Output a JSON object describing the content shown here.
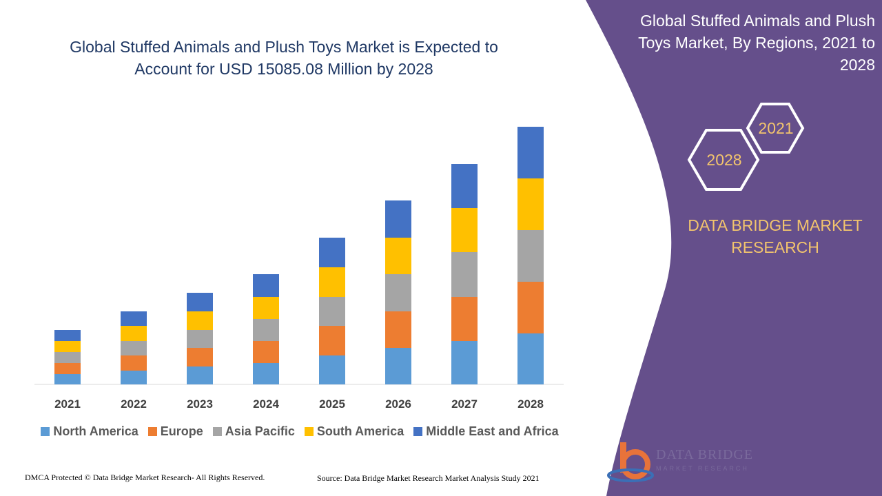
{
  "chart_data": {
    "type": "bar",
    "stacked": true,
    "title": "Global Stuffed Animals and Plush Toys Market is Expected to Account for USD 15085.08 Million by 2028",
    "categories": [
      "2021",
      "2022",
      "2023",
      "2024",
      "2025",
      "2026",
      "2027",
      "2028"
    ],
    "series": [
      {
        "name": "North America",
        "color": "#5b9bd5",
        "values": [
          15,
          20,
          26,
          31,
          42,
          53,
          63,
          74
        ]
      },
      {
        "name": "Europe",
        "color": "#ed7d31",
        "values": [
          16,
          22,
          27,
          32,
          43,
          53,
          64,
          75
        ]
      },
      {
        "name": "Asia Pacific",
        "color": "#a5a5a5",
        "values": [
          16,
          21,
          26,
          32,
          42,
          54,
          65,
          75
        ]
      },
      {
        "name": "South America",
        "color": "#ffc000",
        "values": [
          16,
          22,
          27,
          32,
          43,
          53,
          64,
          75
        ]
      },
      {
        "name": "Middle East and Africa",
        "color": "#4472c4",
        "values": [
          16,
          21,
          27,
          33,
          43,
          54,
          64,
          75
        ]
      }
    ],
    "legend": "bottom"
  },
  "side_panel": {
    "title": "Global Stuffed Animals and Plush Toys Market, By Regions, 2021 to 2028",
    "hexagons": [
      "2021",
      "2028"
    ],
    "brand": "DATA BRIDGE MARKET RESEARCH"
  },
  "footer": {
    "copyright": "DMCA Protected © Data Bridge Market Research- All Rights Reserved.",
    "source": "Source: Data Bridge Market Research Market Analysis Study 2021"
  },
  "logo": {
    "name": "DATA BRIDGE",
    "tagline": "MARKET RESEARCH"
  }
}
